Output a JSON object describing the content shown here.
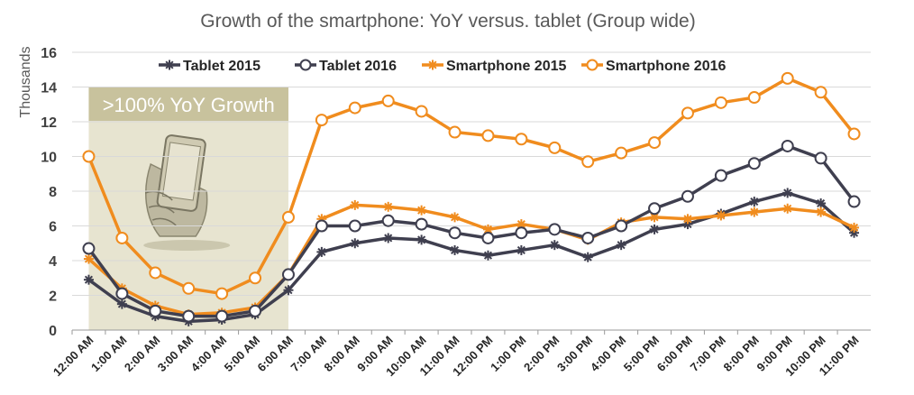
{
  "chart_data": {
    "type": "line",
    "title": "Growth of the smartphone: YoY versus. tablet (Group wide)",
    "xlabel": "",
    "ylabel": "Thousands",
    "ylim": [
      0,
      16
    ],
    "yticks": [
      0,
      2,
      4,
      6,
      8,
      10,
      12,
      14,
      16
    ],
    "grid": true,
    "legend_position": "top",
    "categories": [
      "12:00 AM",
      "1:00 AM",
      "2:00 AM",
      "3:00 AM",
      "4:00 AM",
      "5:00 AM",
      "6:00 AM",
      "7:00 AM",
      "8:00 AM",
      "9:00 AM",
      "10:00 AM",
      "11:00 AM",
      "12:00 PM",
      "1:00 PM",
      "2:00 PM",
      "3:00 PM",
      "4:00 PM",
      "5:00 PM",
      "6:00 PM",
      "7:00 PM",
      "8:00 PM",
      "9:00 PM",
      "10:00 PM",
      "11:00 PM"
    ],
    "series": [
      {
        "name": "Tablet 2015",
        "color": "#3f3f4f",
        "marker": "star",
        "values": [
          2.9,
          1.5,
          0.8,
          0.5,
          0.6,
          0.9,
          2.3,
          4.5,
          5.0,
          5.3,
          5.2,
          4.6,
          4.3,
          4.6,
          4.9,
          4.2,
          4.9,
          5.8,
          6.1,
          6.7,
          7.4,
          7.9,
          7.3,
          5.6
        ]
      },
      {
        "name": "Tablet 2016",
        "color": "#3f3f4f",
        "marker": "circle",
        "values": [
          4.7,
          2.1,
          1.1,
          0.8,
          0.8,
          1.1,
          3.2,
          6.0,
          6.0,
          6.3,
          6.1,
          5.6,
          5.3,
          5.6,
          5.8,
          5.3,
          6.0,
          7.0,
          7.7,
          8.9,
          9.6,
          10.6,
          9.9,
          7.4
        ]
      },
      {
        "name": "Smartphone 2015",
        "color": "#f08c1e",
        "marker": "star",
        "values": [
          4.1,
          2.4,
          1.4,
          0.9,
          1.0,
          1.3,
          3.2,
          6.4,
          7.2,
          7.1,
          6.9,
          6.5,
          5.8,
          6.1,
          5.8,
          5.2,
          6.2,
          6.5,
          6.4,
          6.6,
          6.8,
          7.0,
          6.8,
          5.9
        ]
      },
      {
        "name": "Smartphone 2016",
        "color": "#f08c1e",
        "marker": "circle",
        "values": [
          10.0,
          5.3,
          3.3,
          2.4,
          2.1,
          3.0,
          6.5,
          12.1,
          12.8,
          13.2,
          12.6,
          11.4,
          11.2,
          11.0,
          10.5,
          9.7,
          10.2,
          10.8,
          12.5,
          13.1,
          13.4,
          14.5,
          13.7,
          11.3
        ]
      }
    ],
    "annotations": [
      {
        "text": ">100% YoY Growth",
        "from": "12:00 AM",
        "to": "6:00 AM",
        "icon": "hand-holding-smartphone-icon"
      }
    ]
  }
}
